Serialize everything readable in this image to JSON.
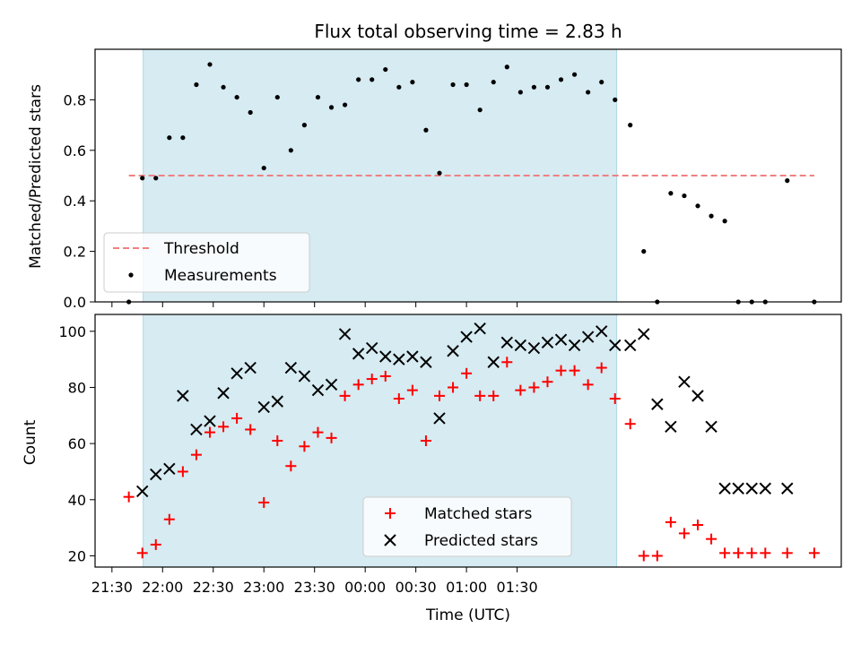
{
  "title": "Flux total observing time = 2.83 h",
  "chart_data": [
    {
      "type": "scatter",
      "panel": "top",
      "ylabel": "Matched/Predicted stars",
      "ylim": [
        0,
        1.0
      ],
      "xlim_minutes": [
        1280,
        1722
      ],
      "yticks": [
        {
          "v": 0.0,
          "label": "0.0"
        },
        {
          "v": 0.2,
          "label": "0.2"
        },
        {
          "v": 0.4,
          "label": "0.4"
        },
        {
          "v": 0.6,
          "label": "0.6"
        },
        {
          "v": 0.8,
          "label": "0.8"
        }
      ],
      "observing_window_minutes": [
        1308.5,
        1589
      ],
      "threshold": {
        "name": "Threshold",
        "value": 0.5,
        "x_range_minutes": [
          1300,
          1706
        ],
        "color": "#f08080"
      },
      "legend": {
        "placement": "lower-left",
        "entries": [
          "Threshold",
          "Measurements"
        ]
      },
      "series": [
        {
          "name": "Measurements",
          "color": "#000000",
          "x_minutes": [
            1300,
            1308,
            1316,
            1324,
            1332,
            1340,
            1348,
            1356,
            1364,
            1372,
            1380,
            1388,
            1396,
            1404,
            1412,
            1420,
            1428,
            1436,
            1444,
            1452,
            1460,
            1468,
            1476,
            1484,
            1492,
            1500,
            1508,
            1516,
            1524,
            1532,
            1540,
            1548,
            1556,
            1564,
            1572,
            1580,
            1588,
            1597,
            1605,
            1613,
            1621,
            1629,
            1637,
            1645,
            1653,
            1661,
            1669,
            1677,
            1690,
            1706
          ],
          "y": [
            0.0,
            0.49,
            0.49,
            0.65,
            0.65,
            0.86,
            0.94,
            0.85,
            0.81,
            0.75,
            0.53,
            0.81,
            0.6,
            0.7,
            0.81,
            0.77,
            0.78,
            0.88,
            0.88,
            0.92,
            0.85,
            0.87,
            0.68,
            0.51,
            0.86,
            0.86,
            0.76,
            0.87,
            0.93,
            0.83,
            0.85,
            0.85,
            0.88,
            0.9,
            0.83,
            0.87,
            0.8,
            0.7,
            0.2,
            0.0,
            0.43,
            0.42,
            0.38,
            0.34,
            0.32,
            0.0,
            0.0,
            0.0,
            0.48,
            0.0
          ]
        }
      ]
    },
    {
      "type": "scatter",
      "panel": "bottom",
      "ylabel": "Count",
      "xlabel": "Time (UTC)",
      "ylim": [
        16,
        106
      ],
      "xlim_minutes": [
        1280,
        1722
      ],
      "yticks": [
        {
          "v": 20,
          "label": "20"
        },
        {
          "v": 40,
          "label": "40"
        },
        {
          "v": 60,
          "label": "60"
        },
        {
          "v": 80,
          "label": "80"
        },
        {
          "v": 100,
          "label": "100"
        }
      ],
      "xticks": [
        {
          "v": 1290,
          "label": "21:30"
        },
        {
          "v": 1320,
          "label": "22:00"
        },
        {
          "v": 1350,
          "label": "22:30"
        },
        {
          "v": 1380,
          "label": "23:00"
        },
        {
          "v": 1410,
          "label": "23:30"
        },
        {
          "v": 1440,
          "label": "00:00"
        },
        {
          "v": 1470,
          "label": "00:30"
        },
        {
          "v": 1500,
          "label": "01:00"
        },
        {
          "v": 1530,
          "label": "01:30"
        }
      ],
      "observing_window_minutes": [
        1308.5,
        1589
      ],
      "legend": {
        "placement": "lower-center",
        "entries": [
          "Matched stars",
          "Predicted stars"
        ]
      },
      "series": [
        {
          "name": "Matched stars",
          "marker": "plus",
          "color": "#ff0000",
          "x_minutes": [
            1300,
            1308,
            1316,
            1324,
            1332,
            1340,
            1348,
            1356,
            1364,
            1372,
            1380,
            1388,
            1396,
            1404,
            1412,
            1420,
            1428,
            1436,
            1444,
            1452,
            1460,
            1468,
            1476,
            1484,
            1492,
            1500,
            1508,
            1516,
            1524,
            1532,
            1540,
            1548,
            1556,
            1564,
            1572,
            1580,
            1588,
            1597,
            1605,
            1613,
            1621,
            1629,
            1637,
            1645,
            1653,
            1661,
            1669,
            1677,
            1690,
            1706
          ],
          "y": [
            41,
            21,
            24,
            33,
            50,
            56,
            64,
            66,
            69,
            65,
            39,
            61,
            52,
            59,
            64,
            62,
            77,
            81,
            83,
            84,
            76,
            79,
            61,
            77,
            80,
            85,
            77,
            77,
            89,
            79,
            80,
            82,
            86,
            86,
            81,
            87,
            76,
            67,
            20,
            20,
            32,
            28,
            31,
            26,
            21,
            21,
            21,
            21,
            21,
            21
          ]
        },
        {
          "name": "Predicted stars",
          "marker": "x",
          "color": "#000000",
          "x_minutes": [
            1308,
            1316,
            1324,
            1332,
            1340,
            1348,
            1356,
            1364,
            1372,
            1380,
            1388,
            1396,
            1404,
            1412,
            1420,
            1428,
            1436,
            1444,
            1452,
            1460,
            1468,
            1476,
            1484,
            1492,
            1500,
            1508,
            1516,
            1524,
            1532,
            1540,
            1548,
            1556,
            1564,
            1572,
            1580,
            1588,
            1597,
            1605,
            1613,
            1621,
            1629,
            1637,
            1645,
            1653,
            1661,
            1669,
            1677,
            1690
          ],
          "y": [
            43,
            49,
            51,
            77,
            65,
            68,
            78,
            85,
            87,
            73,
            75,
            87,
            84,
            79,
            81,
            99,
            92,
            94,
            91,
            90,
            91,
            89,
            69,
            93,
            98,
            101,
            89,
            96,
            95,
            94,
            96,
            97,
            95,
            98,
            100,
            95,
            95,
            99,
            74,
            66,
            82,
            77,
            66,
            44,
            44,
            44,
            44,
            44
          ]
        }
      ]
    }
  ]
}
